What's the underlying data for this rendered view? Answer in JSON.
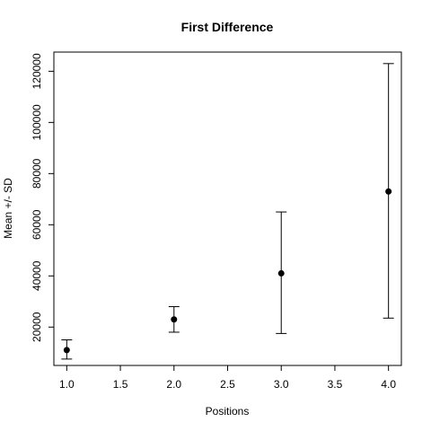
{
  "chart_data": {
    "type": "scatter",
    "title": "First Difference",
    "xlabel": "Positions",
    "ylabel": "Mean +/- SD",
    "xlim": [
      0.88,
      4.12
    ],
    "ylim": [
      5000,
      127500
    ],
    "xticks": [
      1.0,
      1.5,
      2.0,
      2.5,
      3.0,
      3.5,
      4.0
    ],
    "xtick_labels": [
      "1.0",
      "1.5",
      "2.0",
      "2.5",
      "3.0",
      "3.5",
      "4.0"
    ],
    "yticks": [
      20000,
      40000,
      60000,
      80000,
      100000,
      120000
    ],
    "ytick_labels": [
      "20000",
      "40000",
      "60000",
      "80000",
      "100000",
      "120000"
    ],
    "grid": false,
    "series": [
      {
        "points": [
          {
            "x": 1,
            "y": 11000,
            "lower": 7500,
            "upper": 15000
          },
          {
            "x": 2,
            "y": 23000,
            "lower": 18000,
            "upper": 28000
          },
          {
            "x": 3,
            "y": 41000,
            "lower": 17500,
            "upper": 65000
          },
          {
            "x": 4,
            "y": 73000,
            "lower": 23500,
            "upper": 123000
          }
        ]
      }
    ],
    "colors": {
      "point": "#000000",
      "errorbar": "#000000",
      "frame": "#000000"
    }
  }
}
